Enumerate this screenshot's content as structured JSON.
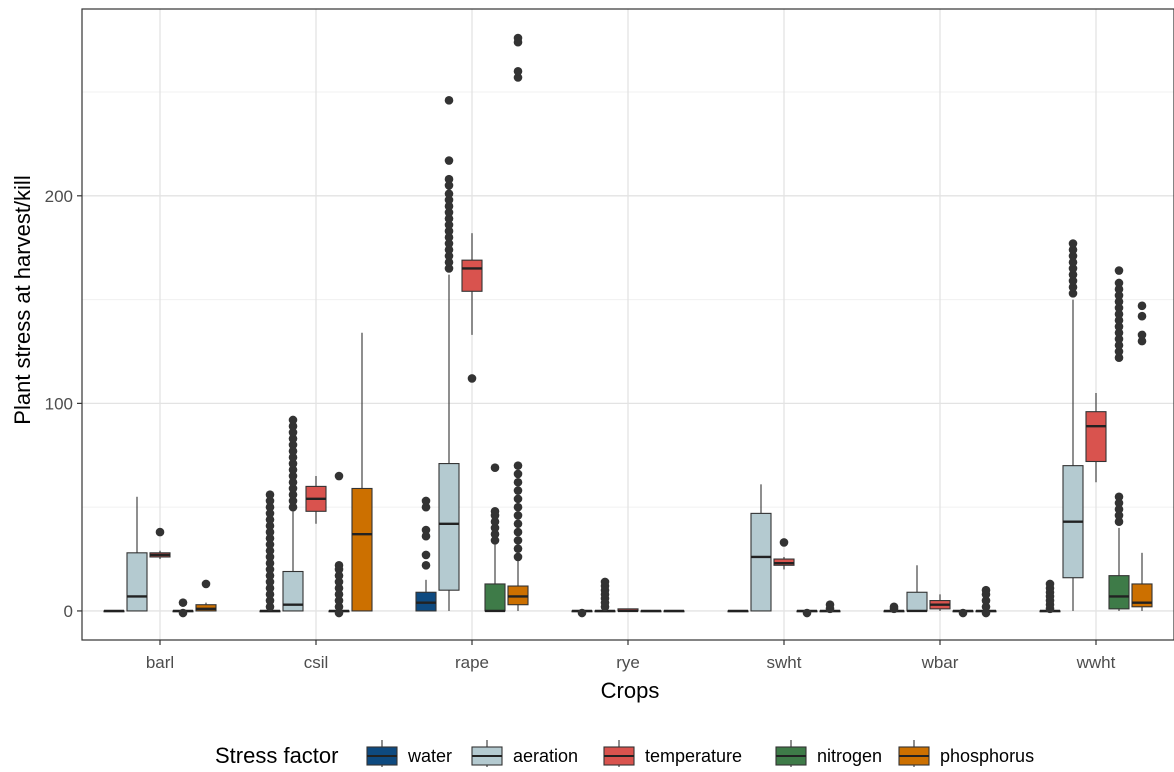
{
  "chart_data": {
    "type": "boxplot",
    "xlabel": "Crops",
    "ylabel": "Plant stress at harvest/kill",
    "categories": [
      "barl",
      "csil",
      "rape",
      "rye",
      "swht",
      "wbar",
      "wwht"
    ],
    "y_ticks": [
      0,
      100,
      200
    ],
    "ylim": [
      -14,
      290
    ],
    "grid": true,
    "legend": {
      "title": "Stress factor",
      "position": "bottom",
      "entries": [
        {
          "name": "water",
          "color": "#0e4a80"
        },
        {
          "name": "aeration",
          "color": "#b4cad0"
        },
        {
          "name": "temperature",
          "color": "#d9534e"
        },
        {
          "name": "nitrogen",
          "color": "#3e7b48"
        },
        {
          "name": "phosphorus",
          "color": "#cc7000"
        }
      ]
    },
    "series": [
      {
        "name": "water",
        "color": "#0e4a80",
        "boxes": [
          {
            "q1": 0,
            "median": 0,
            "q3": 0,
            "lo": 0,
            "hi": 0,
            "outliers": []
          },
          {
            "q1": 0,
            "median": 0,
            "q3": 0,
            "lo": 0,
            "hi": 0,
            "outliers": [
              2,
              5,
              8,
              11,
              14,
              17,
              20,
              23,
              26,
              29,
              32,
              35,
              38,
              41,
              44,
              47,
              50,
              53,
              56
            ]
          },
          {
            "q1": 0,
            "median": 4,
            "q3": 9,
            "lo": 0,
            "hi": 15,
            "outliers": [
              22,
              27,
              36,
              39,
              50,
              53
            ]
          },
          {
            "q1": 0,
            "median": 0,
            "q3": 0,
            "lo": 0,
            "hi": 0,
            "outliers": [
              -1
            ]
          },
          {
            "q1": 0,
            "median": 0,
            "q3": 0,
            "lo": 0,
            "hi": 0,
            "outliers": []
          },
          {
            "q1": 0,
            "median": 0,
            "q3": 0,
            "lo": 0,
            "hi": 0,
            "outliers": [
              1,
              2
            ]
          },
          {
            "q1": 0,
            "median": 0,
            "q3": 0,
            "lo": 0,
            "hi": 0,
            "outliers": [
              1,
              3,
              5,
              7,
              9,
              11,
              13
            ]
          }
        ]
      },
      {
        "name": "aeration",
        "color": "#b4cad0",
        "boxes": [
          {
            "q1": 0,
            "median": 7,
            "q3": 28,
            "lo": 0,
            "hi": 55,
            "outliers": []
          },
          {
            "q1": 0,
            "median": 3,
            "q3": 19,
            "lo": 0,
            "hi": 48,
            "outliers": [
              50,
              53,
              56,
              59,
              62,
              65,
              68,
              71,
              74,
              77,
              80,
              83,
              86,
              89,
              92
            ]
          },
          {
            "q1": 10,
            "median": 42,
            "q3": 71,
            "lo": 0,
            "hi": 162,
            "outliers": [
              165,
              168,
              171,
              174,
              177,
              180,
              183,
              186,
              189,
              192,
              195,
              198,
              201,
              205,
              208,
              217,
              246
            ]
          },
          {
            "q1": 0,
            "median": 0,
            "q3": 0,
            "lo": 0,
            "hi": 0,
            "outliers": [
              2,
              4,
              6,
              8,
              10,
              12,
              14
            ]
          },
          {
            "q1": 0,
            "median": 26,
            "q3": 47,
            "lo": 0,
            "hi": 61,
            "outliers": []
          },
          {
            "q1": 0,
            "median": 0,
            "q3": 9,
            "lo": 0,
            "hi": 22,
            "outliers": []
          },
          {
            "q1": 16,
            "median": 43,
            "q3": 70,
            "lo": 0,
            "hi": 150,
            "outliers": [
              153,
              156,
              159,
              162,
              165,
              168,
              171,
              174,
              177
            ]
          }
        ]
      },
      {
        "name": "temperature",
        "color": "#d9534e",
        "boxes": [
          {
            "q1": 26,
            "median": 27,
            "q3": 28,
            "lo": 25,
            "hi": 29,
            "outliers": [
              38
            ]
          },
          {
            "q1": 48,
            "median": 54,
            "q3": 60,
            "lo": 42,
            "hi": 65,
            "outliers": []
          },
          {
            "q1": 154,
            "median": 165,
            "q3": 169,
            "lo": 133,
            "hi": 182,
            "outliers": [
              112
            ]
          },
          {
            "q1": 0,
            "median": 0,
            "q3": 1,
            "lo": 0,
            "hi": 1,
            "outliers": []
          },
          {
            "q1": 22,
            "median": 23,
            "q3": 25,
            "lo": 20,
            "hi": 26,
            "outliers": [
              33
            ]
          },
          {
            "q1": 1,
            "median": 3,
            "q3": 5,
            "lo": 0,
            "hi": 8,
            "outliers": []
          },
          {
            "q1": 72,
            "median": 89,
            "q3": 96,
            "lo": 62,
            "hi": 105,
            "outliers": []
          }
        ]
      },
      {
        "name": "nitrogen",
        "color": "#3e7b48",
        "boxes": [
          {
            "q1": 0,
            "median": 0,
            "q3": 0,
            "lo": 0,
            "hi": 0,
            "outliers": [
              -1,
              4
            ]
          },
          {
            "q1": 0,
            "median": 0,
            "q3": 0,
            "lo": 0,
            "hi": 0,
            "outliers": [
              -1,
              2,
              5,
              8,
              11,
              14,
              17,
              20,
              22,
              65
            ]
          },
          {
            "q1": 0,
            "median": 0,
            "q3": 13,
            "lo": 0,
            "hi": 32,
            "outliers": [
              34,
              37,
              40,
              43,
              46,
              48,
              69
            ]
          },
          {
            "q1": 0,
            "median": 0,
            "q3": 0,
            "lo": 0,
            "hi": 0,
            "outliers": []
          },
          {
            "q1": 0,
            "median": 0,
            "q3": 0,
            "lo": 0,
            "hi": 0,
            "outliers": [
              -1
            ]
          },
          {
            "q1": 0,
            "median": 0,
            "q3": 0,
            "lo": 0,
            "hi": 0,
            "outliers": [
              -1
            ]
          },
          {
            "q1": 1,
            "median": 7,
            "q3": 17,
            "lo": 0,
            "hi": 40,
            "outliers": [
              43,
              46,
              49,
              52,
              55,
              122,
              125,
              128,
              131,
              134,
              137,
              140,
              143,
              146,
              149,
              152,
              155,
              158,
              164
            ]
          }
        ]
      },
      {
        "name": "phosphorus",
        "color": "#cc7000",
        "boxes": [
          {
            "q1": 0,
            "median": 1,
            "q3": 3,
            "lo": 0,
            "hi": 4,
            "outliers": [
              13
            ]
          },
          {
            "q1": 0,
            "median": 37,
            "q3": 59,
            "lo": 0,
            "hi": 134,
            "outliers": []
          },
          {
            "q1": 3,
            "median": 7,
            "q3": 12,
            "lo": 0,
            "hi": 26,
            "outliers": [
              26,
              30,
              34,
              38,
              42,
              46,
              50,
              54,
              58,
              62,
              66,
              70,
              257,
              260,
              274,
              276
            ]
          },
          {
            "q1": 0,
            "median": 0,
            "q3": 0,
            "lo": 0,
            "hi": 0,
            "outliers": []
          },
          {
            "q1": 0,
            "median": 0,
            "q3": 0,
            "lo": 0,
            "hi": 0,
            "outliers": [
              1,
              3
            ]
          },
          {
            "q1": 0,
            "median": 0,
            "q3": 0,
            "lo": 0,
            "hi": 0,
            "outliers": [
              -1,
              2,
              5,
              8,
              10
            ]
          },
          {
            "q1": 2,
            "median": 4,
            "q3": 13,
            "lo": 0,
            "hi": 28,
            "outliers": [
              130,
              133,
              142,
              147
            ]
          }
        ]
      }
    ]
  }
}
